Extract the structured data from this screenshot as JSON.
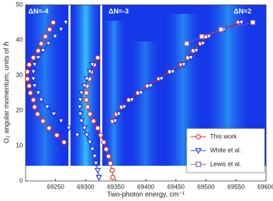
{
  "chart_data": {
    "type": "scatter-line",
    "xlabel": "Two-photon energy, cm⁻¹",
    "ylabel": "O₂ angular momentum, units of ℏ",
    "annotations": [
      "ΔN=-4",
      "ΔN=-3",
      "ΔN=2"
    ],
    "xlim": [
      69200,
      69600
    ],
    "ylim": [
      0,
      50
    ],
    "xticks": [
      69250,
      69300,
      69350,
      69400,
      69450,
      69500,
      69550,
      69600
    ],
    "yticks": [
      0,
      10,
      20,
      30,
      40,
      50
    ],
    "legend": "lower right",
    "series": [
      {
        "name": "This work",
        "color": "#e8261e",
        "marker": "circle",
        "x": [
          69264,
          69252,
          69239,
          69229,
          69220,
          69215,
          69213,
          69208,
          69206,
          69203,
          69203,
          69206,
          69213,
          69221,
          69226,
          69233,
          69240,
          69246,
          null,
          69345,
          69344,
          69341,
          69338,
          69334,
          69330,
          69325,
          69320,
          69313,
          69307,
          69303,
          69301,
          69301,
          69302,
          69306,
          69309,
          69314,
          69320,
          null,
          69345,
          69351,
          69360,
          69372,
          69387,
          69403,
          69422,
          69440,
          69459,
          69470,
          69479,
          69491,
          69500,
          69525,
          69554
        ],
        "values": [
          11,
          13,
          15,
          17,
          19,
          21,
          23,
          25,
          27,
          29,
          31,
          33,
          35,
          37,
          39,
          41,
          43,
          45,
          null,
          1,
          3,
          5,
          7,
          9,
          11,
          13,
          15,
          17,
          19,
          21,
          23,
          25,
          27,
          29,
          31,
          33,
          35,
          null,
          17,
          19,
          21,
          23,
          25,
          27,
          29,
          31,
          33,
          35,
          37,
          39,
          41,
          43,
          45
        ]
      },
      {
        "name": "White et al.",
        "color": "#1f2fd6",
        "marker": "triangle-down",
        "x": [
          69286,
          69272,
          69259,
          69247,
          69236,
          69226,
          69221,
          69215,
          69213,
          69213,
          69215,
          69221,
          69229,
          69238,
          69249,
          69259,
          69267,
          null,
          69322,
          69320,
          69317,
          69315,
          69311,
          69307,
          69302,
          69298,
          69293,
          69291,
          69290,
          69291,
          69293,
          69298,
          69302,
          69307,
          69311,
          null,
          69349,
          69355,
          69364,
          69377,
          69392,
          69408,
          69426,
          69445,
          69463,
          69475,
          69484,
          69495,
          69505,
          69530,
          69559
        ],
        "values": [
          13,
          15,
          17,
          19,
          21,
          23,
          25,
          27,
          29,
          31,
          33,
          35,
          37,
          39,
          41,
          43,
          45,
          null,
          1,
          3,
          5,
          7,
          9,
          11,
          13,
          15,
          17,
          19,
          21,
          23,
          25,
          27,
          29,
          31,
          33,
          null,
          17,
          19,
          21,
          23,
          25,
          27,
          29,
          31,
          33,
          35,
          37,
          39,
          41,
          43,
          45
        ]
      },
      {
        "name": "Lewis et al.",
        "color": "#8a4fb0",
        "marker": "square",
        "x": [
          69468,
          69493,
          69525,
          69578
        ],
        "values": [
          39,
          41,
          43,
          45
        ]
      }
    ]
  }
}
